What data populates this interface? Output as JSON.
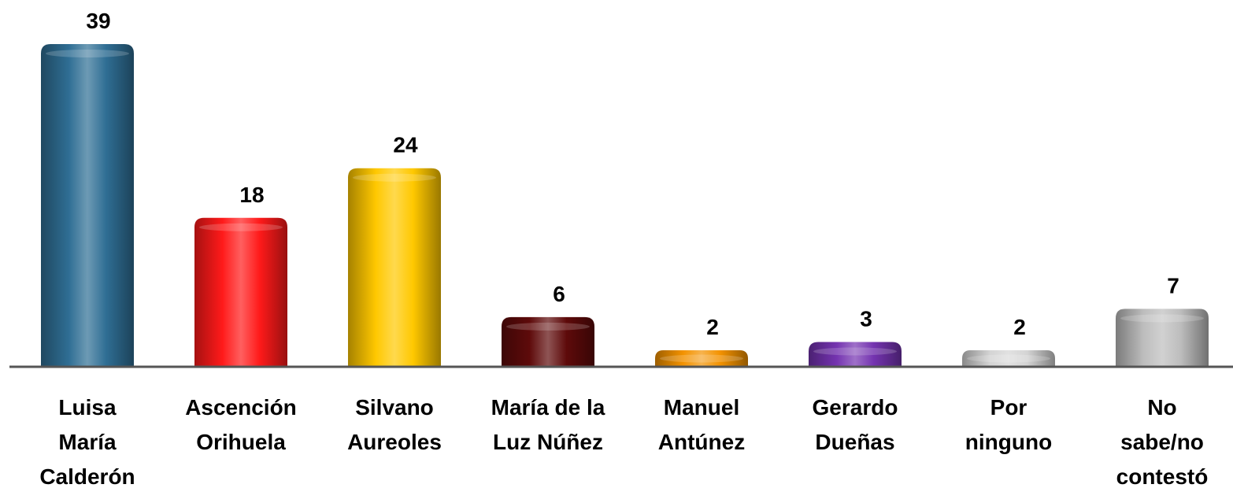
{
  "chart_data": {
    "type": "bar",
    "categories": [
      "Luisa\nMaría\nCalderón",
      "Ascención\nOrihuela",
      "Silvano\nAureoles",
      "María de la\nLuz Núñez",
      "Manuel\nAntúnez",
      "Gerardo\nDueñas",
      "Por\nninguno",
      "No\nsabe/no\ncontestó"
    ],
    "values": [
      39,
      18,
      24,
      6,
      2,
      3,
      2,
      7
    ],
    "colors": [
      "#2f6e94",
      "#ff1a1a",
      "#ffc800",
      "#5e0a0a",
      "#f39200",
      "#7433b0",
      "#d4d4d4",
      "#bdbdbd"
    ]
  }
}
